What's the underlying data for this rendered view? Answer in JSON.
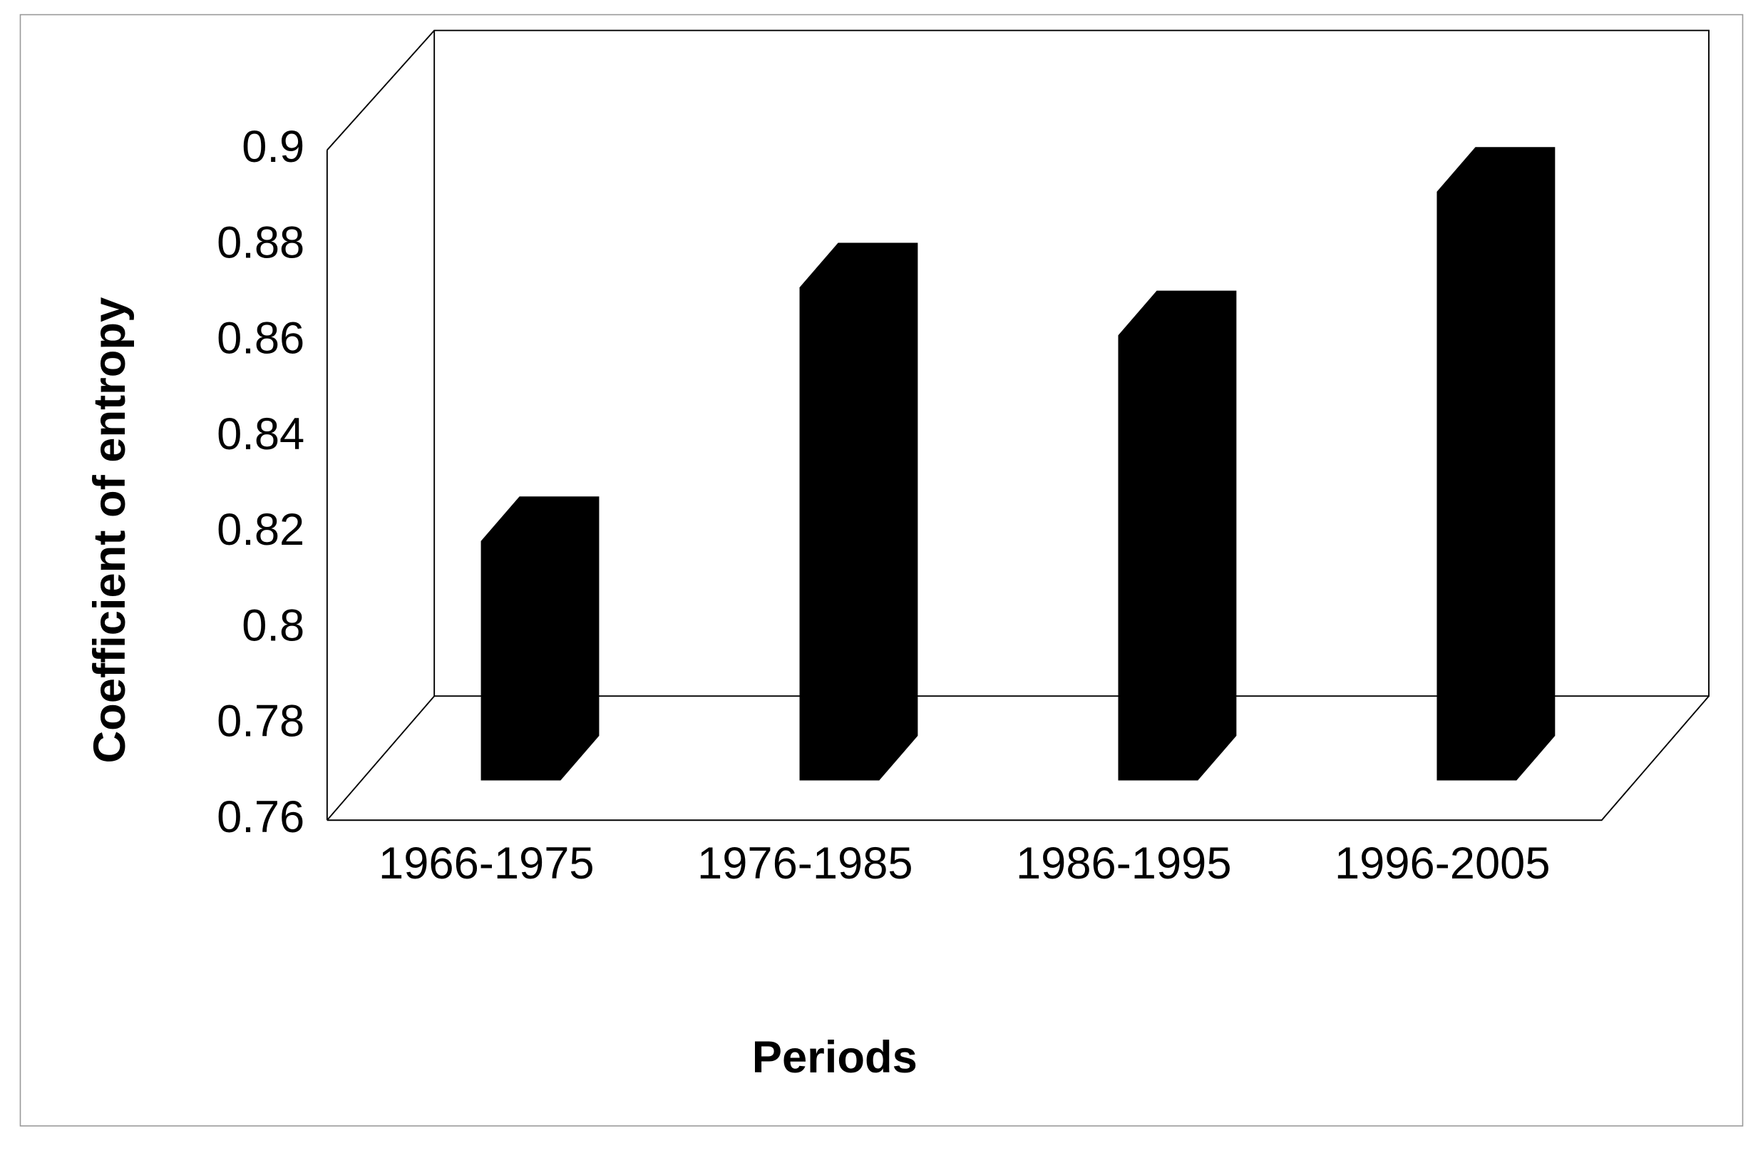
{
  "chart_data": {
    "type": "bar3d",
    "x_label": "Periods",
    "y_label": "Coefficient of entropy",
    "categories": [
      "1966-1975",
      "1976-1985",
      "1986-1995",
      "1996-2005"
    ],
    "values": [
      0.81,
      0.863,
      0.853,
      0.883
    ],
    "color": "#000000",
    "ylim": [
      0.76,
      0.9
    ],
    "yticks": [
      0.76,
      0.78,
      0.8,
      0.82,
      0.84,
      0.86,
      0.88,
      0.9
    ],
    "grid": false
  }
}
